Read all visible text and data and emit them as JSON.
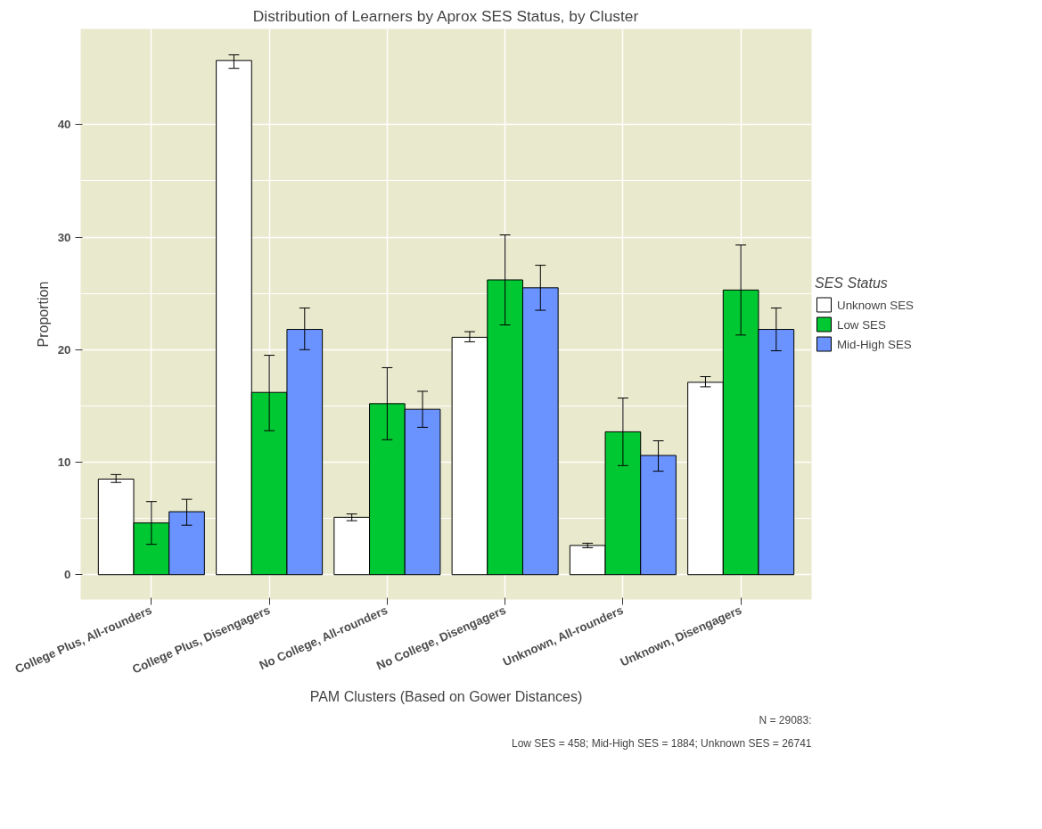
{
  "chart_data": {
    "type": "bar",
    "title": "Distribution of Learners by Aprox SES Status, by Cluster",
    "xlabel": "PAM Clusters (Based on Gower Distances)",
    "ylabel": "Proportion",
    "legend_title": "SES Status",
    "categories": [
      "College Plus, All-rounders",
      "College Plus, Disengagers",
      "No College, All-rounders",
      "No College, Disengagers",
      "Unknown, All-rounders",
      "Unknown, Disengagers"
    ],
    "series": [
      {
        "name": "Unknown SES",
        "color": "#ffffff",
        "values": [
          8.5,
          45.7,
          5.1,
          21.1,
          2.6,
          17.1
        ],
        "errors": [
          [
            8.2,
            8.9
          ],
          [
            45.0,
            46.2
          ],
          [
            4.8,
            5.4
          ],
          [
            20.7,
            21.6
          ],
          [
            2.4,
            2.8
          ],
          [
            16.7,
            17.6
          ]
        ]
      },
      {
        "name": "Low SES",
        "color": "#00c832",
        "values": [
          4.6,
          16.2,
          15.2,
          26.2,
          12.7,
          25.3
        ],
        "errors": [
          [
            2.7,
            6.5
          ],
          [
            12.8,
            19.5
          ],
          [
            12.0,
            18.4
          ],
          [
            22.2,
            30.2
          ],
          [
            9.7,
            15.7
          ],
          [
            21.3,
            29.3
          ]
        ]
      },
      {
        "name": "Mid-High SES",
        "color": "#6a93ff",
        "values": [
          5.6,
          21.8,
          14.7,
          25.5,
          10.6,
          21.8
        ],
        "errors": [
          [
            4.4,
            6.7
          ],
          [
            20.0,
            23.7
          ],
          [
            13.1,
            16.3
          ],
          [
            23.5,
            27.5
          ],
          [
            9.2,
            11.9
          ],
          [
            19.9,
            23.7
          ]
        ]
      }
    ],
    "ylim": [
      -2.2,
      48.5
    ],
    "yticks": [
      0,
      10,
      20,
      30,
      40
    ],
    "grid": true,
    "legend": "right",
    "annotations": [
      "N = 29083:",
      "Low SES = 458; Mid-High SES = 1884; Unknown SES = 26741"
    ]
  }
}
